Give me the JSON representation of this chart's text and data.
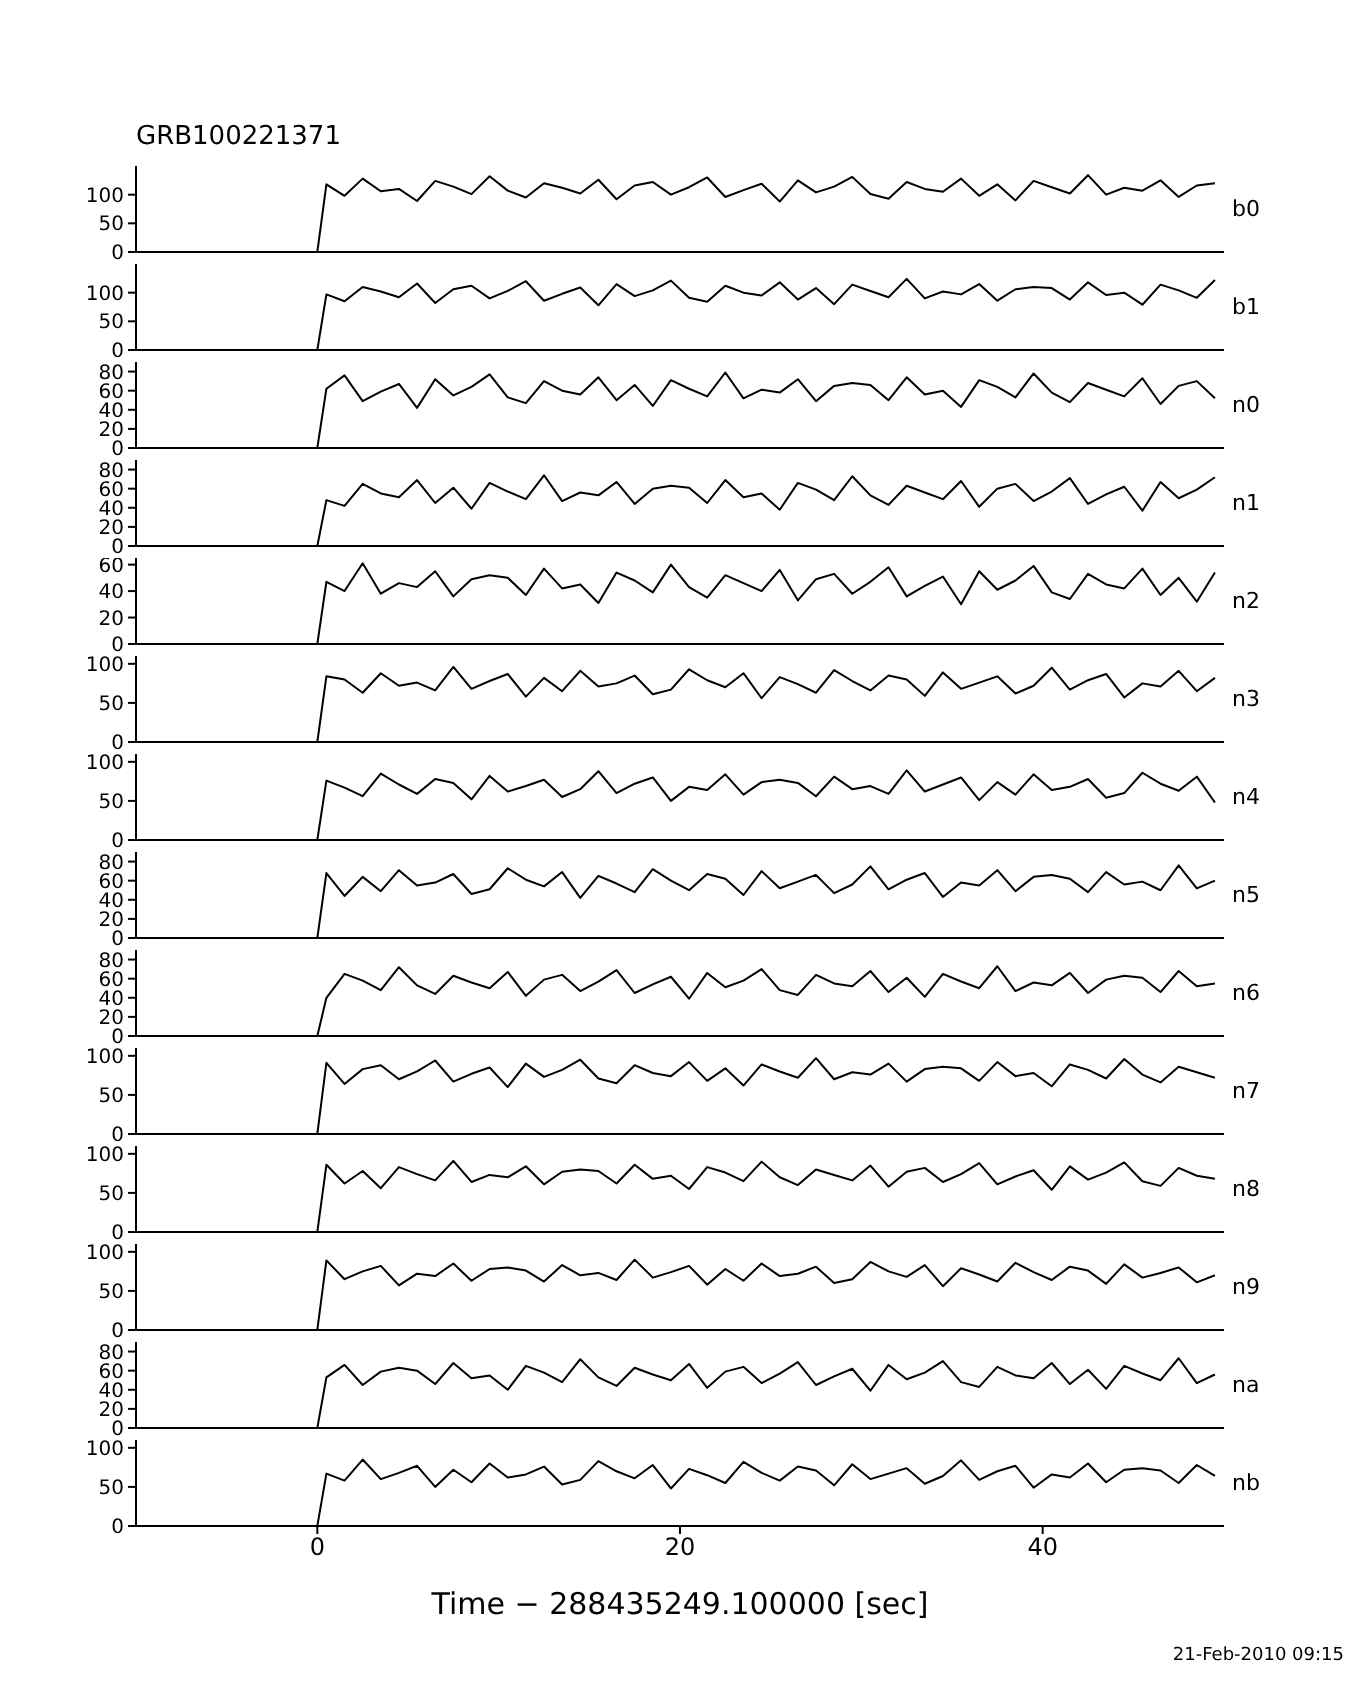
{
  "chart_data": [
    {
      "type": "line",
      "title": "GRB100221371",
      "x": [
        -10,
        0,
        0.5,
        1.5,
        2.5,
        3.5,
        4.5,
        5.5,
        6.5,
        7.5,
        8.5,
        9.5,
        10.5,
        11.5,
        12.5,
        13.5,
        14.5,
        15.5,
        16.5,
        17.5,
        18.5,
        19.5,
        20.5,
        21.5,
        22.5,
        23.5,
        24.5,
        25.5,
        26.5,
        27.5,
        28.5,
        29.5,
        30.5,
        31.5,
        32.5,
        33.5,
        34.5,
        35.5,
        36.5,
        37.5,
        38.5,
        39.5,
        40.5,
        41.5,
        42.5,
        43.5,
        44.5,
        45.5,
        46.5,
        47.5,
        48.5,
        49.5
      ],
      "xlim": [
        -10,
        50
      ],
      "xticks": [
        0,
        20,
        40
      ],
      "ylim": [
        0,
        150
      ],
      "yticks": [
        0,
        50,
        100
      ],
      "tick_labels": "y",
      "marker": "none",
      "line_style": "solid",
      "series": [
        {
          "name": "b0",
          "color": "#000000",
          "values": [
            0,
            0,
            118,
            98,
            128,
            106,
            110,
            89,
            124,
            114,
            101,
            132,
            107,
            95,
            120,
            112,
            102,
            126,
            92,
            116,
            122,
            100,
            113,
            130,
            96,
            108,
            119,
            88,
            125,
            104,
            114,
            131,
            101,
            93,
            122,
            110,
            105,
            128,
            98,
            118,
            90,
            124,
            113,
            102,
            134,
            100,
            112,
            107,
            125,
            96,
            116,
            120
          ]
        }
      ]
    },
    {
      "type": "line",
      "x": [
        -10,
        0,
        0.5,
        1.5,
        2.5,
        3.5,
        4.5,
        5.5,
        6.5,
        7.5,
        8.5,
        9.5,
        10.5,
        11.5,
        12.5,
        13.5,
        14.5,
        15.5,
        16.5,
        17.5,
        18.5,
        19.5,
        20.5,
        21.5,
        22.5,
        23.5,
        24.5,
        25.5,
        26.5,
        27.5,
        28.5,
        29.5,
        30.5,
        31.5,
        32.5,
        33.5,
        34.5,
        35.5,
        36.5,
        37.5,
        38.5,
        39.5,
        40.5,
        41.5,
        42.5,
        43.5,
        44.5,
        45.5,
        46.5,
        47.5,
        48.5,
        49.5
      ],
      "xlim": [
        -10,
        50
      ],
      "xticks": [
        0,
        20,
        40
      ],
      "ylim": [
        0,
        150
      ],
      "yticks": [
        0,
        50,
        100
      ],
      "tick_labels": "y",
      "marker": "none",
      "line_style": "solid",
      "series": [
        {
          "name": "b1",
          "color": "#000000",
          "values": [
            0,
            0,
            97,
            85,
            110,
            102,
            92,
            116,
            82,
            106,
            112,
            90,
            103,
            120,
            86,
            98,
            109,
            78,
            115,
            94,
            104,
            121,
            91,
            84,
            112,
            100,
            95,
            118,
            88,
            108,
            80,
            114,
            103,
            92,
            124,
            90,
            102,
            97,
            115,
            86,
            106,
            110,
            108,
            88,
            118,
            96,
            100,
            79,
            114,
            104,
            91,
            122
          ]
        }
      ]
    },
    {
      "type": "line",
      "x": [
        -10,
        0,
        0.5,
        1.5,
        2.5,
        3.5,
        4.5,
        5.5,
        6.5,
        7.5,
        8.5,
        9.5,
        10.5,
        11.5,
        12.5,
        13.5,
        14.5,
        15.5,
        16.5,
        17.5,
        18.5,
        19.5,
        20.5,
        21.5,
        22.5,
        23.5,
        24.5,
        25.5,
        26.5,
        27.5,
        28.5,
        29.5,
        30.5,
        31.5,
        32.5,
        33.5,
        34.5,
        35.5,
        36.5,
        37.5,
        38.5,
        39.5,
        40.5,
        41.5,
        42.5,
        43.5,
        44.5,
        45.5,
        46.5,
        47.5,
        48.5,
        49.5
      ],
      "xlim": [
        -10,
        50
      ],
      "xticks": [
        0,
        20,
        40
      ],
      "ylim": [
        0,
        90
      ],
      "yticks": [
        0,
        20,
        40,
        60,
        80
      ],
      "tick_labels": "y",
      "marker": "none",
      "line_style": "solid",
      "series": [
        {
          "name": "n0",
          "color": "#000000",
          "values": [
            0,
            0,
            62,
            76,
            49,
            59,
            67,
            42,
            72,
            55,
            64,
            77,
            53,
            47,
            70,
            60,
            56,
            74,
            50,
            66,
            44,
            71,
            62,
            54,
            79,
            52,
            61,
            58,
            72,
            49,
            65,
            68,
            66,
            50,
            74,
            56,
            60,
            43,
            71,
            64,
            53,
            78,
            58,
            48,
            68,
            61,
            54,
            73,
            46,
            65,
            70,
            52
          ]
        }
      ]
    },
    {
      "type": "line",
      "x": [
        -10,
        0,
        0.5,
        1.5,
        2.5,
        3.5,
        4.5,
        5.5,
        6.5,
        7.5,
        8.5,
        9.5,
        10.5,
        11.5,
        12.5,
        13.5,
        14.5,
        15.5,
        16.5,
        17.5,
        18.5,
        19.5,
        20.5,
        21.5,
        22.5,
        23.5,
        24.5,
        25.5,
        26.5,
        27.5,
        28.5,
        29.5,
        30.5,
        31.5,
        32.5,
        33.5,
        34.5,
        35.5,
        36.5,
        37.5,
        38.5,
        39.5,
        40.5,
        41.5,
        42.5,
        43.5,
        44.5,
        45.5,
        46.5,
        47.5,
        48.5,
        49.5
      ],
      "xlim": [
        -10,
        50
      ],
      "xticks": [
        0,
        20,
        40
      ],
      "ylim": [
        0,
        90
      ],
      "yticks": [
        0,
        20,
        40,
        60,
        80
      ],
      "tick_labels": "y",
      "marker": "none",
      "line_style": "solid",
      "series": [
        {
          "name": "n1",
          "color": "#000000",
          "values": [
            0,
            0,
            48,
            42,
            65,
            55,
            51,
            69,
            45,
            61,
            39,
            66,
            57,
            49,
            74,
            47,
            56,
            53,
            67,
            44,
            60,
            63,
            61,
            45,
            69,
            51,
            55,
            38,
            66,
            59,
            48,
            73,
            53,
            43,
            63,
            56,
            49,
            68,
            41,
            60,
            65,
            47,
            57,
            71,
            44,
            54,
            62,
            37,
            67,
            50,
            59,
            72
          ]
        }
      ]
    },
    {
      "type": "line",
      "x": [
        -10,
        0,
        0.5,
        1.5,
        2.5,
        3.5,
        4.5,
        5.5,
        6.5,
        7.5,
        8.5,
        9.5,
        10.5,
        11.5,
        12.5,
        13.5,
        14.5,
        15.5,
        16.5,
        17.5,
        18.5,
        19.5,
        20.5,
        21.5,
        22.5,
        23.5,
        24.5,
        25.5,
        26.5,
        27.5,
        28.5,
        29.5,
        30.5,
        31.5,
        32.5,
        33.5,
        34.5,
        35.5,
        36.5,
        37.5,
        38.5,
        39.5,
        40.5,
        41.5,
        42.5,
        43.5,
        44.5,
        45.5,
        46.5,
        47.5,
        48.5,
        49.5
      ],
      "xlim": [
        -10,
        50
      ],
      "xticks": [
        0,
        20,
        40
      ],
      "ylim": [
        0,
        65
      ],
      "yticks": [
        0,
        20,
        40,
        60
      ],
      "tick_labels": "y",
      "marker": "none",
      "line_style": "solid",
      "series": [
        {
          "name": "n2",
          "color": "#000000",
          "values": [
            0,
            0,
            47,
            40,
            61,
            38,
            46,
            43,
            55,
            36,
            49,
            52,
            50,
            37,
            57,
            42,
            45,
            31,
            54,
            48,
            39,
            60,
            43,
            35,
            52,
            46,
            40,
            56,
            33,
            49,
            53,
            38,
            47,
            58,
            36,
            44,
            51,
            30,
            55,
            41,
            48,
            59,
            39,
            34,
            53,
            45,
            42,
            57,
            37,
            50,
            32,
            54
          ]
        }
      ]
    },
    {
      "type": "line",
      "x": [
        -10,
        0,
        0.5,
        1.5,
        2.5,
        3.5,
        4.5,
        5.5,
        6.5,
        7.5,
        8.5,
        9.5,
        10.5,
        11.5,
        12.5,
        13.5,
        14.5,
        15.5,
        16.5,
        17.5,
        18.5,
        19.5,
        20.5,
        21.5,
        22.5,
        23.5,
        24.5,
        25.5,
        26.5,
        27.5,
        28.5,
        29.5,
        30.5,
        31.5,
        32.5,
        33.5,
        34.5,
        35.5,
        36.5,
        37.5,
        38.5,
        39.5,
        40.5,
        41.5,
        42.5,
        43.5,
        44.5,
        45.5,
        46.5,
        47.5,
        48.5,
        49.5
      ],
      "xlim": [
        -10,
        50
      ],
      "xticks": [
        0,
        20,
        40
      ],
      "ylim": [
        0,
        110
      ],
      "yticks": [
        0,
        50,
        100
      ],
      "tick_labels": "y",
      "marker": "none",
      "line_style": "solid",
      "series": [
        {
          "name": "n3",
          "color": "#000000",
          "values": [
            0,
            0,
            84,
            80,
            63,
            88,
            72,
            76,
            66,
            96,
            68,
            78,
            87,
            58,
            82,
            65,
            91,
            71,
            75,
            85,
            61,
            67,
            93,
            79,
            70,
            88,
            56,
            83,
            74,
            63,
            92,
            78,
            66,
            85,
            80,
            59,
            89,
            68,
            76,
            84,
            62,
            72,
            95,
            67,
            79,
            87,
            57,
            75,
            71,
            91,
            65,
            82
          ]
        }
      ]
    },
    {
      "type": "line",
      "x": [
        -10,
        0,
        0.5,
        1.5,
        2.5,
        3.5,
        4.5,
        5.5,
        6.5,
        7.5,
        8.5,
        9.5,
        10.5,
        11.5,
        12.5,
        13.5,
        14.5,
        15.5,
        16.5,
        17.5,
        18.5,
        19.5,
        20.5,
        21.5,
        22.5,
        23.5,
        24.5,
        25.5,
        26.5,
        27.5,
        28.5,
        29.5,
        30.5,
        31.5,
        32.5,
        33.5,
        34.5,
        35.5,
        36.5,
        37.5,
        38.5,
        39.5,
        40.5,
        41.5,
        42.5,
        43.5,
        44.5,
        45.5,
        46.5,
        47.5,
        48.5,
        49.5
      ],
      "xlim": [
        -10,
        50
      ],
      "xticks": [
        0,
        20,
        40
      ],
      "ylim": [
        0,
        110
      ],
      "yticks": [
        0,
        50,
        100
      ],
      "tick_labels": "y",
      "marker": "none",
      "line_style": "solid",
      "series": [
        {
          "name": "n4",
          "color": "#000000",
          "values": [
            0,
            0,
            76,
            67,
            56,
            85,
            71,
            59,
            78,
            73,
            52,
            82,
            62,
            69,
            77,
            55,
            65,
            88,
            60,
            72,
            80,
            50,
            68,
            64,
            84,
            58,
            74,
            77,
            73,
            56,
            81,
            65,
            69,
            59,
            89,
            62,
            71,
            80,
            51,
            74,
            58,
            84,
            64,
            68,
            78,
            54,
            60,
            86,
            72,
            63,
            81,
            48
          ]
        }
      ]
    },
    {
      "type": "line",
      "x": [
        -10,
        0,
        0.5,
        1.5,
        2.5,
        3.5,
        4.5,
        5.5,
        6.5,
        7.5,
        8.5,
        9.5,
        10.5,
        11.5,
        12.5,
        13.5,
        14.5,
        15.5,
        16.5,
        17.5,
        18.5,
        19.5,
        20.5,
        21.5,
        22.5,
        23.5,
        24.5,
        25.5,
        26.5,
        27.5,
        28.5,
        29.5,
        30.5,
        31.5,
        32.5,
        33.5,
        34.5,
        35.5,
        36.5,
        37.5,
        38.5,
        39.5,
        40.5,
        41.5,
        42.5,
        43.5,
        44.5,
        45.5,
        46.5,
        47.5,
        48.5,
        49.5
      ],
      "xlim": [
        -10,
        50
      ],
      "xticks": [
        0,
        20,
        40
      ],
      "ylim": [
        0,
        90
      ],
      "yticks": [
        0,
        20,
        40,
        60,
        80
      ],
      "tick_labels": "y",
      "marker": "none",
      "line_style": "solid",
      "series": [
        {
          "name": "n5",
          "color": "#000000",
          "values": [
            0,
            0,
            68,
            44,
            64,
            49,
            71,
            55,
            58,
            67,
            46,
            51,
            73,
            61,
            54,
            69,
            42,
            65,
            57,
            48,
            72,
            60,
            50,
            67,
            62,
            45,
            70,
            52,
            59,
            66,
            47,
            56,
            75,
            51,
            61,
            68,
            43,
            58,
            55,
            71,
            49,
            64,
            66,
            62,
            48,
            69,
            56,
            59,
            50,
            76,
            52,
            60
          ]
        }
      ]
    },
    {
      "type": "line",
      "x": [
        -10,
        0,
        0.5,
        1.5,
        2.5,
        3.5,
        4.5,
        5.5,
        6.5,
        7.5,
        8.5,
        9.5,
        10.5,
        11.5,
        12.5,
        13.5,
        14.5,
        15.5,
        16.5,
        17.5,
        18.5,
        19.5,
        20.5,
        21.5,
        22.5,
        23.5,
        24.5,
        25.5,
        26.5,
        27.5,
        28.5,
        29.5,
        30.5,
        31.5,
        32.5,
        33.5,
        34.5,
        35.5,
        36.5,
        37.5,
        38.5,
        39.5,
        40.5,
        41.5,
        42.5,
        43.5,
        44.5,
        45.5,
        46.5,
        47.5,
        48.5,
        49.5
      ],
      "xlim": [
        -10,
        50
      ],
      "xticks": [
        0,
        20,
        40
      ],
      "ylim": [
        0,
        90
      ],
      "yticks": [
        0,
        20,
        40,
        60,
        80
      ],
      "tick_labels": "y",
      "marker": "none",
      "line_style": "solid",
      "series": [
        {
          "name": "n6",
          "color": "#000000",
          "values": [
            0,
            0,
            40,
            65,
            58,
            48,
            72,
            53,
            44,
            63,
            56,
            50,
            67,
            42,
            59,
            64,
            47,
            57,
            69,
            45,
            54,
            62,
            39,
            66,
            51,
            58,
            70,
            48,
            43,
            64,
            55,
            52,
            68,
            46,
            61,
            41,
            65,
            57,
            50,
            73,
            47,
            56,
            53,
            66,
            45,
            59,
            63,
            61,
            46,
            68,
            52,
            55
          ]
        }
      ]
    },
    {
      "type": "line",
      "x": [
        -10,
        0,
        0.5,
        1.5,
        2.5,
        3.5,
        4.5,
        5.5,
        6.5,
        7.5,
        8.5,
        9.5,
        10.5,
        11.5,
        12.5,
        13.5,
        14.5,
        15.5,
        16.5,
        17.5,
        18.5,
        19.5,
        20.5,
        21.5,
        22.5,
        23.5,
        24.5,
        25.5,
        26.5,
        27.5,
        28.5,
        29.5,
        30.5,
        31.5,
        32.5,
        33.5,
        34.5,
        35.5,
        36.5,
        37.5,
        38.5,
        39.5,
        40.5,
        41.5,
        42.5,
        43.5,
        44.5,
        45.5,
        46.5,
        47.5,
        48.5,
        49.5
      ],
      "xlim": [
        -10,
        50
      ],
      "xticks": [
        0,
        20,
        40
      ],
      "ylim": [
        0,
        110
      ],
      "yticks": [
        0,
        50,
        100
      ],
      "tick_labels": "y",
      "marker": "none",
      "line_style": "solid",
      "series": [
        {
          "name": "n7",
          "color": "#000000",
          "values": [
            0,
            0,
            91,
            64,
            83,
            88,
            70,
            80,
            94,
            67,
            77,
            85,
            60,
            90,
            73,
            82,
            95,
            71,
            65,
            88,
            78,
            74,
            92,
            68,
            84,
            62,
            89,
            80,
            72,
            97,
            70,
            79,
            76,
            90,
            67,
            83,
            86,
            84,
            68,
            92,
            74,
            78,
            61,
            89,
            82,
            71,
            96,
            76,
            66,
            86,
            79,
            72
          ]
        }
      ]
    },
    {
      "type": "line",
      "x": [
        -10,
        0,
        0.5,
        1.5,
        2.5,
        3.5,
        4.5,
        5.5,
        6.5,
        7.5,
        8.5,
        9.5,
        10.5,
        11.5,
        12.5,
        13.5,
        14.5,
        15.5,
        16.5,
        17.5,
        18.5,
        19.5,
        20.5,
        21.5,
        22.5,
        23.5,
        24.5,
        25.5,
        26.5,
        27.5,
        28.5,
        29.5,
        30.5,
        31.5,
        32.5,
        33.5,
        34.5,
        35.5,
        36.5,
        37.5,
        38.5,
        39.5,
        40.5,
        41.5,
        42.5,
        43.5,
        44.5,
        45.5,
        46.5,
        47.5,
        48.5,
        49.5
      ],
      "xlim": [
        -10,
        50
      ],
      "xticks": [
        0,
        20,
        40
      ],
      "ylim": [
        0,
        110
      ],
      "yticks": [
        0,
        50,
        100
      ],
      "tick_labels": "y",
      "marker": "none",
      "line_style": "solid",
      "series": [
        {
          "name": "n8",
          "color": "#000000",
          "values": [
            0,
            0,
            86,
            62,
            78,
            56,
            83,
            74,
            66,
            91,
            64,
            73,
            70,
            84,
            61,
            77,
            80,
            78,
            62,
            86,
            68,
            72,
            55,
            83,
            76,
            65,
            90,
            70,
            60,
            80,
            73,
            66,
            85,
            58,
            77,
            82,
            64,
            74,
            88,
            61,
            71,
            79,
            54,
            84,
            67,
            76,
            89,
            65,
            59,
            82,
            72,
            68
          ]
        }
      ]
    },
    {
      "type": "line",
      "x": [
        -10,
        0,
        0.5,
        1.5,
        2.5,
        3.5,
        4.5,
        5.5,
        6.5,
        7.5,
        8.5,
        9.5,
        10.5,
        11.5,
        12.5,
        13.5,
        14.5,
        15.5,
        16.5,
        17.5,
        18.5,
        19.5,
        20.5,
        21.5,
        22.5,
        23.5,
        24.5,
        25.5,
        26.5,
        27.5,
        28.5,
        29.5,
        30.5,
        31.5,
        32.5,
        33.5,
        34.5,
        35.5,
        36.5,
        37.5,
        38.5,
        39.5,
        40.5,
        41.5,
        42.5,
        43.5,
        44.5,
        45.5,
        46.5,
        47.5,
        48.5,
        49.5
      ],
      "xlim": [
        -10,
        50
      ],
      "xticks": [
        0,
        20,
        40
      ],
      "ylim": [
        0,
        110
      ],
      "yticks": [
        0,
        50,
        100
      ],
      "tick_labels": "y",
      "marker": "none",
      "line_style": "solid",
      "series": [
        {
          "name": "n9",
          "color": "#000000",
          "values": [
            0,
            0,
            89,
            65,
            75,
            82,
            57,
            72,
            69,
            85,
            63,
            78,
            80,
            76,
            62,
            83,
            70,
            73,
            64,
            90,
            67,
            74,
            82,
            58,
            78,
            63,
            85,
            69,
            72,
            81,
            60,
            65,
            87,
            75,
            68,
            83,
            56,
            79,
            71,
            62,
            86,
            74,
            64,
            81,
            76,
            59,
            84,
            67,
            73,
            80,
            61,
            70
          ]
        }
      ]
    },
    {
      "type": "line",
      "x": [
        -10,
        0,
        0.5,
        1.5,
        2.5,
        3.5,
        4.5,
        5.5,
        6.5,
        7.5,
        8.5,
        9.5,
        10.5,
        11.5,
        12.5,
        13.5,
        14.5,
        15.5,
        16.5,
        17.5,
        18.5,
        19.5,
        20.5,
        21.5,
        22.5,
        23.5,
        24.5,
        25.5,
        26.5,
        27.5,
        28.5,
        29.5,
        30.5,
        31.5,
        32.5,
        33.5,
        34.5,
        35.5,
        36.5,
        37.5,
        38.5,
        39.5,
        40.5,
        41.5,
        42.5,
        43.5,
        44.5,
        45.5,
        46.5,
        47.5,
        48.5,
        49.5
      ],
      "xlim": [
        -10,
        50
      ],
      "xticks": [
        0,
        20,
        40
      ],
      "ylim": [
        0,
        90
      ],
      "yticks": [
        0,
        20,
        40,
        60,
        80
      ],
      "tick_labels": "y",
      "marker": "none",
      "line_style": "solid",
      "series": [
        {
          "name": "na",
          "color": "#000000",
          "values": [
            0,
            0,
            53,
            66,
            45,
            59,
            63,
            60,
            46,
            68,
            52,
            55,
            40,
            65,
            58,
            48,
            72,
            53,
            44,
            63,
            56,
            50,
            67,
            42,
            59,
            64,
            47,
            57,
            69,
            45,
            54,
            62,
            39,
            66,
            51,
            58,
            70,
            48,
            43,
            64,
            55,
            52,
            68,
            46,
            61,
            41,
            65,
            57,
            50,
            73,
            47,
            56
          ]
        }
      ]
    },
    {
      "type": "line",
      "xlabel": "Time − 288435249.100000 [sec]",
      "annotations": [
        "21-Feb-2010 09:15"
      ],
      "x": [
        -10,
        0,
        0.5,
        1.5,
        2.5,
        3.5,
        4.5,
        5.5,
        6.5,
        7.5,
        8.5,
        9.5,
        10.5,
        11.5,
        12.5,
        13.5,
        14.5,
        15.5,
        16.5,
        17.5,
        18.5,
        19.5,
        20.5,
        21.5,
        22.5,
        23.5,
        24.5,
        25.5,
        26.5,
        27.5,
        28.5,
        29.5,
        30.5,
        31.5,
        32.5,
        33.5,
        34.5,
        35.5,
        36.5,
        37.5,
        38.5,
        39.5,
        40.5,
        41.5,
        42.5,
        43.5,
        44.5,
        45.5,
        46.5,
        47.5,
        48.5,
        49.5
      ],
      "xlim": [
        -10,
        50
      ],
      "xticks": [
        0,
        20,
        40
      ],
      "ylim": [
        0,
        110
      ],
      "yticks": [
        0,
        50,
        100
      ],
      "marker": "none",
      "line_style": "solid",
      "series": [
        {
          "name": "nb",
          "color": "#000000",
          "values": [
            0,
            0,
            67,
            58,
            85,
            60,
            68,
            77,
            50,
            72,
            56,
            80,
            62,
            66,
            76,
            53,
            59,
            83,
            70,
            61,
            78,
            48,
            73,
            65,
            55,
            82,
            68,
            58,
            76,
            71,
            52,
            79,
            60,
            67,
            74,
            54,
            64,
            84,
            59,
            70,
            77,
            49,
            66,
            62,
            80,
            56,
            72,
            74,
            71,
            55,
            78,
            64
          ]
        }
      ]
    }
  ]
}
